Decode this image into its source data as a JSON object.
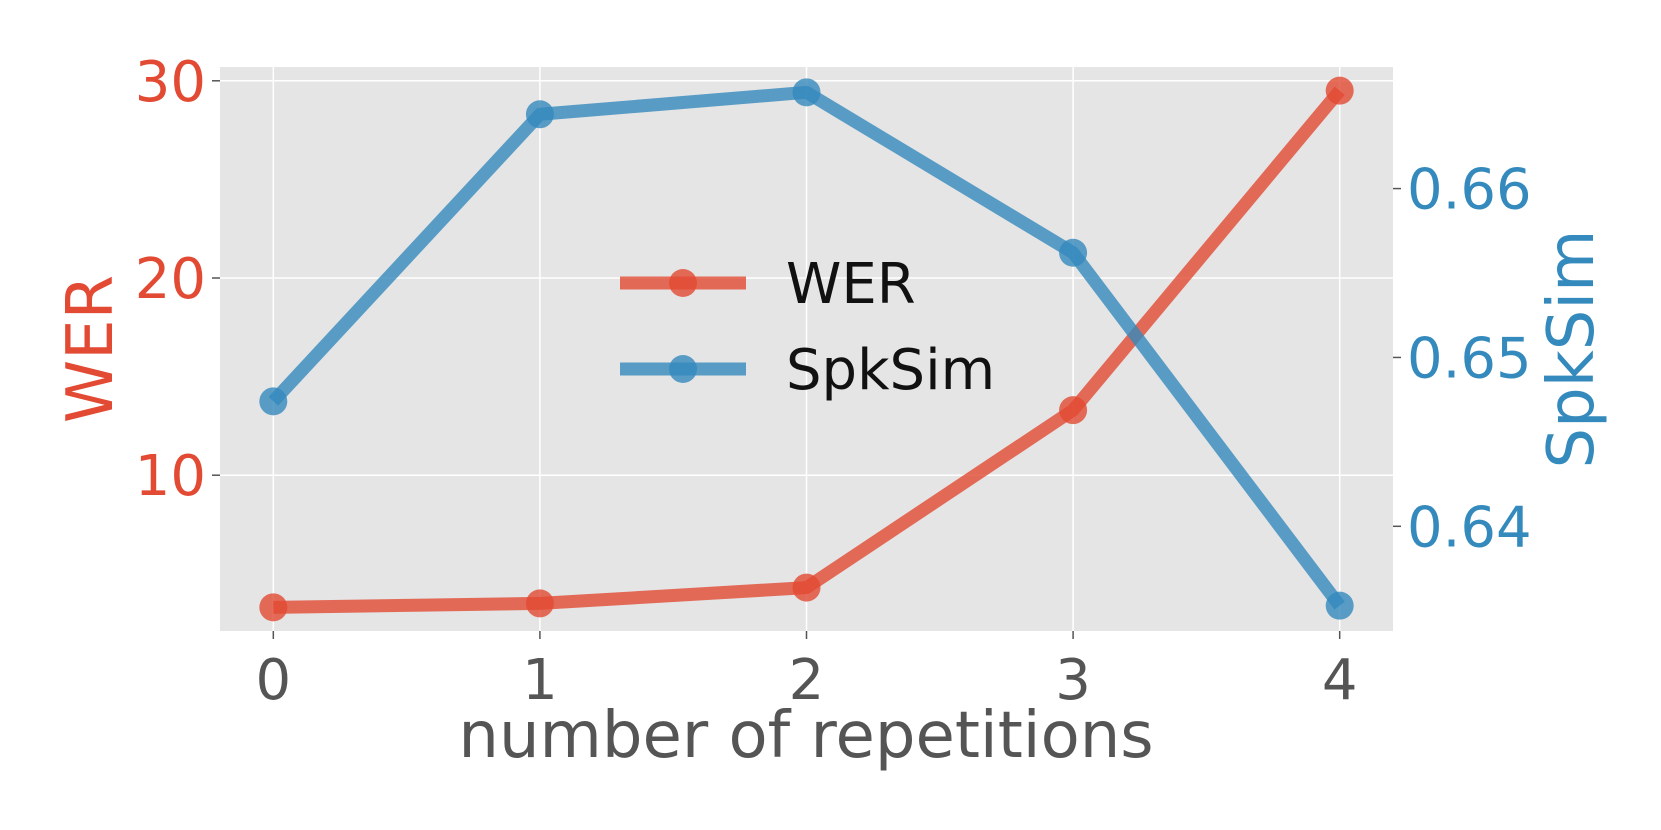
{
  "chart_data": {
    "type": "line",
    "xlabel": "number of repetitions",
    "x": [
      0,
      1,
      2,
      3,
      4
    ],
    "xlim": [
      -0.2,
      4.2
    ],
    "grid": true,
    "legend_position": "center",
    "series": [
      {
        "name": "WER",
        "axis": "left",
        "color": "#E24A33",
        "values": [
          3.3,
          3.5,
          4.3,
          13.3,
          29.5
        ]
      },
      {
        "name": "SpkSim",
        "axis": "right",
        "color": "#348ABD",
        "values": [
          0.6474,
          0.6644,
          0.6657,
          0.6562,
          0.6353
        ]
      }
    ],
    "y_left": {
      "label": "WER",
      "range": [
        2.1,
        30.7
      ],
      "ticks": [
        10,
        20,
        30
      ],
      "tick_labels": [
        "10",
        "20",
        "30"
      ],
      "color": "#E24A33"
    },
    "y_right": {
      "label": "SpkSim",
      "range": [
        0.6338,
        0.6672
      ],
      "ticks": [
        0.64,
        0.65,
        0.66
      ],
      "tick_labels": [
        "0.64",
        "0.65",
        "0.66"
      ],
      "color": "#348ABD"
    },
    "x_tick_labels": [
      "0",
      "1",
      "2",
      "3",
      "4"
    ]
  }
}
